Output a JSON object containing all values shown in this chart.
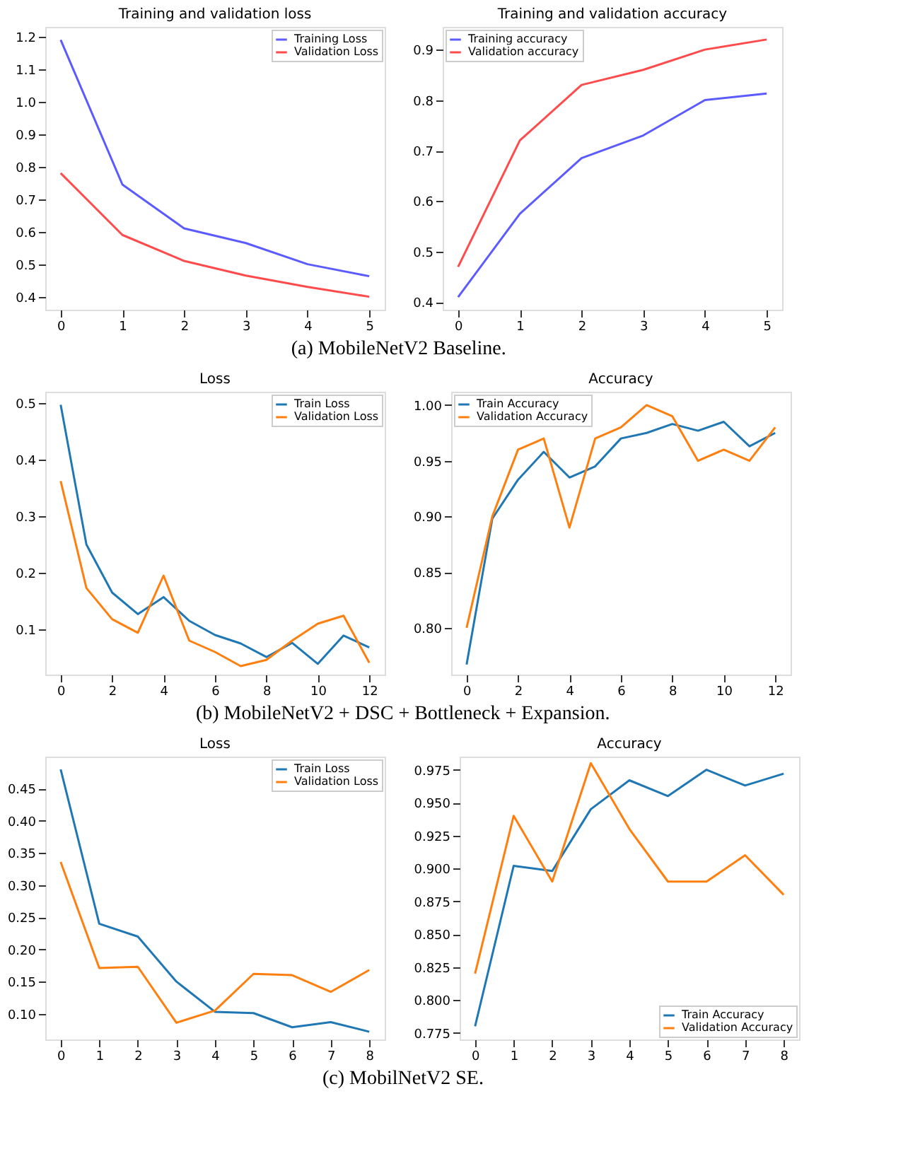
{
  "chart_data": [
    {
      "type": "line",
      "title": "Training and validation loss",
      "annotations": [
        "(a) MobileNetV2 Baseline."
      ],
      "x": [
        0,
        1,
        2,
        3,
        4,
        5
      ],
      "xlim": [
        -0.25,
        5.25
      ],
      "xticks": [
        0,
        1,
        2,
        3,
        4,
        5
      ],
      "ylim": [
        0.36,
        1.23
      ],
      "yticks": [
        0.4,
        0.5,
        0.6,
        0.7,
        0.8,
        0.9,
        {
          "value": 1.0,
          "label": "1.0"
        },
        1.1,
        1.2
      ],
      "grid": false,
      "legend": "top right",
      "marker": "none",
      "line_style": "solid",
      "series": [
        {
          "name": "Training Loss",
          "color": "#5b5bff",
          "values": [
            1.19,
            0.745,
            0.61,
            0.565,
            0.5,
            0.463
          ]
        },
        {
          "name": "Validation Loss",
          "color": "#ff4b4b",
          "values": [
            0.78,
            0.59,
            0.51,
            0.465,
            0.43,
            0.4
          ]
        }
      ]
    },
    {
      "type": "line",
      "title": "Training and validation accuracy",
      "x": [
        0,
        1,
        2,
        3,
        4,
        5
      ],
      "xlim": [
        -0.25,
        5.25
      ],
      "xticks": [
        0,
        1,
        2,
        3,
        4,
        5
      ],
      "ylim": [
        0.385,
        0.945
      ],
      "yticks": [
        0.4,
        0.5,
        0.6,
        0.7,
        0.8,
        0.9
      ],
      "grid": false,
      "legend": "top left",
      "marker": "none",
      "line_style": "solid",
      "series": [
        {
          "name": "Training accuracy",
          "color": "#5b5bff",
          "values": [
            0.41,
            0.575,
            0.685,
            0.73,
            0.8,
            0.813
          ]
        },
        {
          "name": "Validation accuracy",
          "color": "#ff4b4b",
          "values": [
            0.47,
            0.72,
            0.83,
            0.86,
            0.9,
            0.92
          ]
        }
      ]
    },
    {
      "type": "line",
      "title": "Loss",
      "annotations": [
        "(b) MobileNetV2 + DSC + Bottleneck + Expansion."
      ],
      "x": [
        0,
        1,
        2,
        3,
        4,
        5,
        6,
        7,
        8,
        9,
        10,
        11,
        12
      ],
      "xlim": [
        -0.6,
        12.6
      ],
      "xticks": [
        0,
        2,
        4,
        6,
        8,
        10,
        12
      ],
      "ylim": [
        0.02,
        0.52
      ],
      "yticks": [
        0.1,
        0.2,
        0.3,
        0.4,
        0.5
      ],
      "grid": false,
      "legend": "top right",
      "marker": "none",
      "line_style": "solid",
      "series": [
        {
          "name": "Train Loss",
          "color": "#1f77b4",
          "values": [
            0.497,
            0.25,
            0.165,
            0.127,
            0.157,
            0.115,
            0.09,
            0.075,
            0.051,
            0.076,
            0.039,
            0.089,
            0.068
          ]
        },
        {
          "name": "Validation Loss",
          "color": "#ff7f0e",
          "values": [
            0.362,
            0.173,
            0.118,
            0.094,
            0.195,
            0.08,
            0.06,
            0.035,
            0.046,
            0.08,
            0.11,
            0.124,
            0.041
          ]
        }
      ]
    },
    {
      "type": "line",
      "title": "Accuracy",
      "x": [
        0,
        1,
        2,
        3,
        4,
        5,
        6,
        7,
        8,
        9,
        10,
        11,
        12
      ],
      "xlim": [
        -0.6,
        12.6
      ],
      "xticks": [
        0,
        2,
        4,
        6,
        8,
        10,
        12
      ],
      "ylim": [
        0.758,
        1.012
      ],
      "yticks": [
        {
          "value": 0.8,
          "label": "0.80"
        },
        0.85,
        {
          "value": 0.9,
          "label": "0.90"
        },
        0.95,
        {
          "value": 1.0,
          "label": "1.00"
        }
      ],
      "grid": false,
      "legend": "top left",
      "marker": "none",
      "line_style": "solid",
      "series": [
        {
          "name": "Train Accuracy",
          "color": "#1f77b4",
          "values": [
            0.767,
            0.898,
            0.933,
            0.958,
            0.935,
            0.945,
            0.97,
            0.975,
            0.983,
            0.977,
            0.985,
            0.963,
            0.975
          ]
        },
        {
          "name": "Validation Accuracy",
          "color": "#ff7f0e",
          "values": [
            0.8,
            0.9,
            0.96,
            0.97,
            0.89,
            0.97,
            0.98,
            1.0,
            0.99,
            0.95,
            0.96,
            0.95,
            0.98
          ]
        }
      ]
    },
    {
      "type": "line",
      "title": "Loss",
      "annotations": [
        "(c) MobilNetV2  SE."
      ],
      "x": [
        0,
        1,
        2,
        3,
        4,
        5,
        6,
        7,
        8
      ],
      "xlim": [
        -0.4,
        8.4
      ],
      "xticks": [
        0,
        1,
        2,
        3,
        4,
        5,
        6,
        7,
        8
      ],
      "ylim": [
        0.06,
        0.5
      ],
      "yticks": [
        {
          "value": 0.1,
          "label": "0.10"
        },
        0.15,
        {
          "value": 0.2,
          "label": "0.20"
        },
        0.25,
        {
          "value": 0.3,
          "label": "0.30"
        },
        0.35,
        {
          "value": 0.4,
          "label": "0.40"
        },
        0.45
      ],
      "grid": false,
      "legend": "top right",
      "marker": "none",
      "line_style": "solid",
      "series": [
        {
          "name": "Train Loss",
          "color": "#1f77b4",
          "values": [
            0.48,
            0.24,
            0.22,
            0.15,
            0.103,
            0.101,
            0.079,
            0.087,
            0.072
          ]
        },
        {
          "name": "Validation Loss",
          "color": "#ff7f0e",
          "values": [
            0.336,
            0.171,
            0.173,
            0.086,
            0.105,
            0.162,
            0.16,
            0.134,
            0.168
          ]
        }
      ]
    },
    {
      "type": "line",
      "title": "Accuracy",
      "x": [
        0,
        1,
        2,
        3,
        4,
        5,
        6,
        7,
        8
      ],
      "xlim": [
        -0.4,
        8.4
      ],
      "xticks": [
        0,
        1,
        2,
        3,
        4,
        5,
        6,
        7,
        8
      ],
      "ylim": [
        0.77,
        0.985
      ],
      "yticks": [
        0.775,
        {
          "value": 0.8,
          "label": "0.800"
        },
        0.825,
        {
          "value": 0.85,
          "label": "0.850"
        },
        0.875,
        {
          "value": 0.9,
          "label": "0.900"
        },
        0.925,
        {
          "value": 0.95,
          "label": "0.950"
        },
        0.975
      ],
      "grid": false,
      "legend": "bottom right",
      "marker": "none",
      "line_style": "solid",
      "series": [
        {
          "name": "Train Accuracy",
          "color": "#1f77b4",
          "values": [
            0.78,
            0.902,
            0.898,
            0.945,
            0.967,
            0.955,
            0.975,
            0.963,
            0.972
          ]
        },
        {
          "name": "Validation Accuracy",
          "color": "#ff7f0e",
          "values": [
            0.82,
            0.94,
            0.89,
            0.98,
            0.93,
            0.89,
            0.89,
            0.91,
            0.88
          ]
        }
      ]
    }
  ]
}
